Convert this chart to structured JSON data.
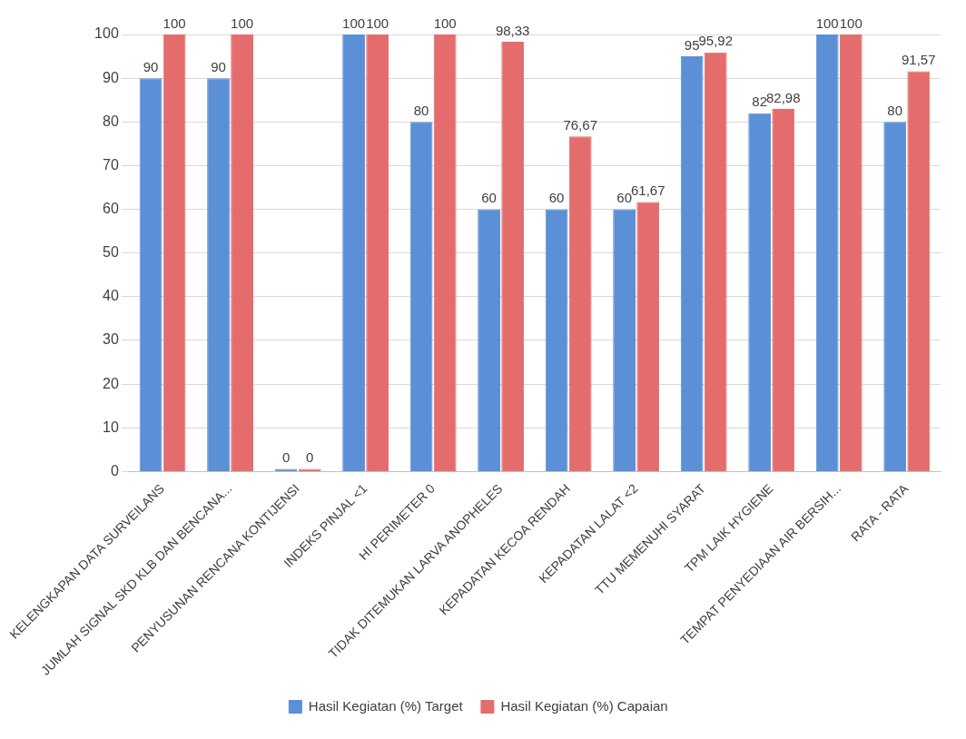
{
  "chart_data": {
    "type": "bar",
    "categories": [
      "KELENGKAPAN DATA SURVEILANS",
      "JUMLAH SIGNAL SKD KLB DAN BENCANA...",
      "PENYUSUNAN RENCANA KONTIJENSI",
      "INDEKS PINJAL <1",
      "HI PERIMETER 0",
      "TIDAK DITEMUKAN LARVA ANOPHELES",
      "KEPADATAN KECOA RENDAH",
      "KEPADATAN LALAT <2",
      "TTU MEMENUHI SYARAT",
      "TPM LAIK HYGIENE",
      "TEMPAT PENYEDIAAN AIR BERSIH...",
      "RATA - RATA"
    ],
    "series": [
      {
        "name": "Hasil Kegiatan (%) Target",
        "color": "#5b8fd6",
        "values": [
          90,
          90,
          0,
          100,
          80,
          60,
          60,
          60,
          95,
          82,
          100,
          80
        ],
        "value_labels": [
          "90",
          "90",
          "0",
          "100",
          "80",
          "60",
          "60",
          "60",
          "95",
          "82",
          "100",
          "80"
        ]
      },
      {
        "name": "Hasil Kegiatan (%) Capaian",
        "color": "#e46c6c",
        "values": [
          100,
          100,
          0,
          100,
          100,
          98.33,
          76.67,
          61.67,
          95.92,
          82.98,
          100,
          91.57
        ],
        "value_labels": [
          "100",
          "100",
          "0",
          "100",
          "100",
          "98,33",
          "76,67",
          "61,67",
          "95,92",
          "82,98",
          "100",
          "91,57"
        ]
      }
    ],
    "ylim": [
      0,
      100
    ],
    "yticks": [
      0,
      10,
      20,
      30,
      40,
      50,
      60,
      70,
      80,
      90,
      100
    ],
    "grid": "y",
    "legend": "bottom"
  }
}
